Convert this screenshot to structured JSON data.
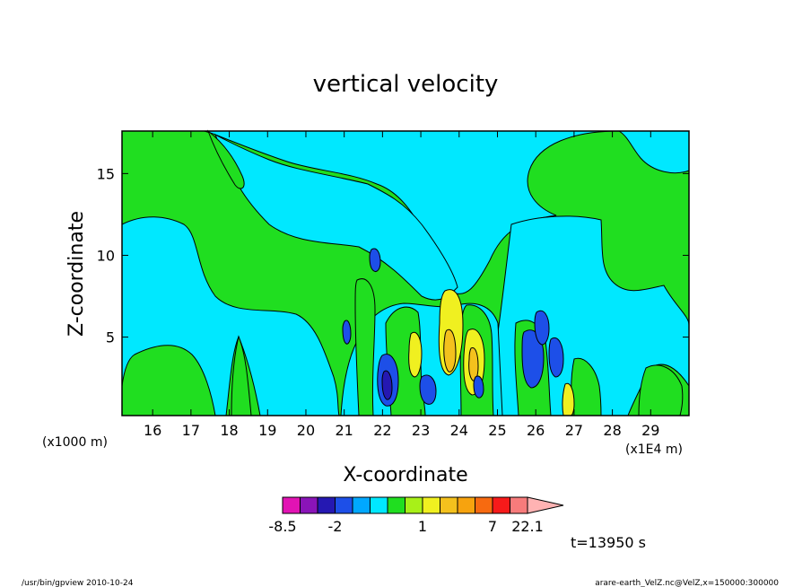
{
  "chart_data": {
    "type": "heatmap",
    "title": "vertical velocity",
    "xlabel": "X-coordinate",
    "ylabel": "Z-coordinate",
    "x_units": "(x1E4 m)",
    "y_units": "(x1000 m)",
    "x_ticks": [
      16,
      17,
      18,
      19,
      20,
      21,
      22,
      23,
      24,
      25,
      26,
      27,
      28,
      29
    ],
    "y_ticks": [
      5,
      10,
      15
    ],
    "xlim": [
      15.2,
      30
    ],
    "ylim": [
      0.2,
      17.6
    ],
    "colorbar": {
      "levels": [
        -8.5,
        -5.5,
        -3.5,
        -2,
        -1.3,
        -0.5,
        0,
        0.5,
        1,
        1.5,
        2,
        4.5,
        7,
        10.5,
        13.5,
        17.8,
        22.1
      ],
      "colors": [
        "#e213b4",
        "#8a14b8",
        "#2518b2",
        "#1d4fe8",
        "#00a8ff",
        "#00e8ff",
        "#20de20",
        "#a8f018",
        "#f0f020",
        "#f4c11d",
        "#f7a30e",
        "#f76a10",
        "#f71a1a",
        "#f77b7b",
        "#ffb3b3"
      ],
      "tick_labels": [
        "-8.5",
        "-2",
        "1",
        "7",
        "22.1"
      ],
      "tick_values": [
        -8.5,
        -2,
        1,
        7,
        22.1
      ]
    },
    "time_label": "t=13950  s"
  },
  "footer": {
    "left": "/usr/bin/gpview   2010-10-24",
    "right": "arare-earth_VelZ.nc@VelZ,x=150000:300000"
  }
}
